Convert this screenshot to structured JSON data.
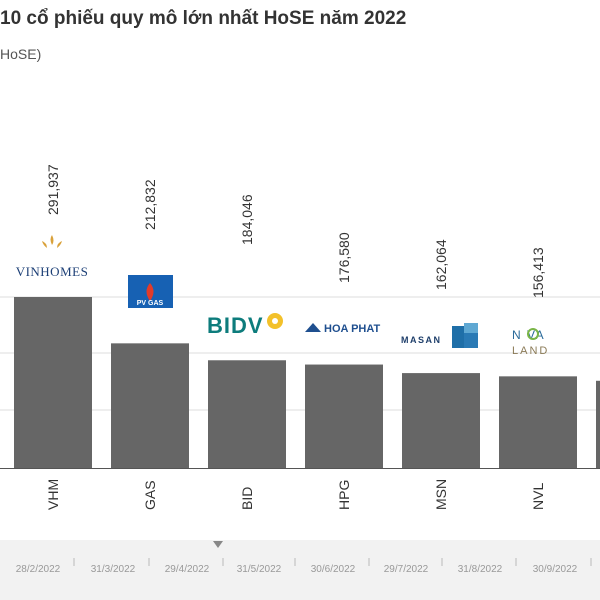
{
  "title": "10 cổ phiếu quy mô lớn nhất HoSE năm 2022",
  "subtitle": "HoSE)",
  "colors": {
    "bar": "#666666",
    "grid": "#dddddd",
    "axis": "#555555",
    "timeline_bg": "#f2f2f2"
  },
  "chart_data": {
    "type": "bar",
    "categories": [
      "VHM",
      "GAS",
      "BID",
      "HPG",
      "MSN",
      "NVL"
    ],
    "values": [
      291937,
      212832,
      184046,
      176580,
      162064,
      156413
    ],
    "value_labels": [
      "291,937",
      "212,832",
      "184,046",
      "176,580",
      "162,064",
      "156,413"
    ],
    "logos": [
      "VINHOMES",
      "PV GAS",
      "BIDV",
      "HOA PHAT",
      "MASAN",
      "NOVALAND"
    ],
    "bar_heights_pct": [
      100,
      72.9,
      63.0,
      60.5,
      55.5,
      53.6
    ],
    "partial_next_bar_value_pct": 51.0,
    "grid": true,
    "legend": "none"
  },
  "timeline": {
    "labels": [
      "28/2/2022",
      "31/3/2022",
      "29/4/2022",
      "31/5/2022",
      "30/6/2022",
      "29/7/2022",
      "31/8/2022",
      "30/9/2022"
    ]
  }
}
